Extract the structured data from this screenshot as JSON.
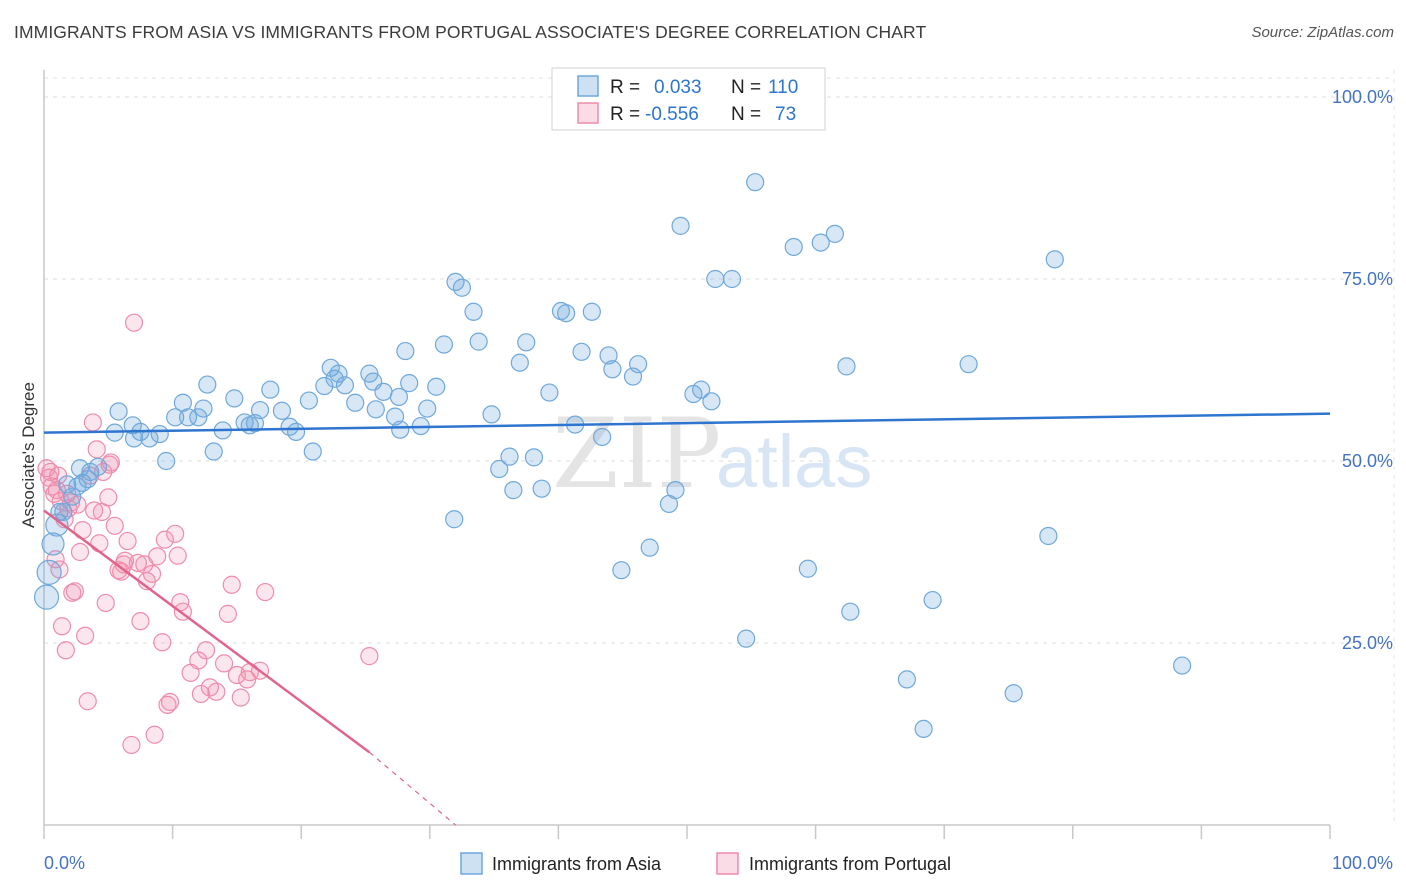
{
  "title": "IMMIGRANTS FROM ASIA VS IMMIGRANTS FROM PORTUGAL ASSOCIATE'S DEGREE CORRELATION CHART",
  "source": "Source: ZipAtlas.com",
  "watermark": {
    "zip": "ZIP",
    "atlas": "atlas"
  },
  "legend_top": {
    "rows": [
      {
        "r_label": "R =",
        "r_value": "0.033",
        "n_label": "N =",
        "n_value": "110"
      },
      {
        "r_label": "R =",
        "r_value": "-0.556",
        "n_label": "N =",
        "n_value": "73"
      }
    ]
  },
  "colors": {
    "asia": "#6fa8dc",
    "asia_fill": "rgba(111,168,220,0.28)",
    "asia_line": "#2e75cf",
    "portugal": "#f08cab",
    "portugal_fill": "rgba(240,140,171,0.22)",
    "portugal_line": "#e0648c",
    "value_text": "#2e75cf",
    "tick_text": "#4472c4"
  },
  "chart_data": {
    "type": "scatter",
    "title": "IMMIGRANTS FROM ASIA VS IMMIGRANTS FROM PORTUGAL ASSOCIATE'S DEGREE CORRELATION CHART",
    "xlabel": "",
    "ylabel": "Associate's Degree",
    "xlim": [
      0,
      100
    ],
    "ylim": [
      0,
      104
    ],
    "x_tick_labels": [
      "0.0%",
      "100.0%"
    ],
    "y_ticks": [
      25,
      50,
      75,
      100
    ],
    "y_tick_labels": [
      "25.0%",
      "50.0%",
      "75.0%",
      "100.0%"
    ],
    "grid": true,
    "legend_position": "top-center",
    "series": [
      {
        "name": "Immigrants from Asia",
        "R": 0.033,
        "N": 110,
        "trend": {
          "x": [
            0,
            100
          ],
          "y": [
            53.9,
            56.5
          ]
        },
        "points": [
          [
            0.2,
            31.3
          ],
          [
            0.4,
            34.7
          ],
          [
            0.7,
            38.6
          ],
          [
            1.0,
            41.2
          ],
          [
            1.5,
            43.0
          ],
          [
            1.8,
            46.8
          ],
          [
            2.2,
            45.1
          ],
          [
            2.6,
            46.5
          ],
          [
            3.0,
            47.0
          ],
          [
            3.6,
            48.5
          ],
          [
            4.2,
            49.2
          ],
          [
            5.5,
            53.9
          ],
          [
            7.0,
            53.1
          ],
          [
            7.5,
            54.0
          ],
          [
            8.2,
            53.1
          ],
          [
            9.0,
            53.7
          ],
          [
            10.2,
            56.0
          ],
          [
            10.8,
            58.0
          ],
          [
            11.2,
            56.0
          ],
          [
            12.4,
            57.2
          ],
          [
            12.7,
            60.5
          ],
          [
            13.9,
            54.2
          ],
          [
            14.8,
            58.6
          ],
          [
            16.0,
            54.9
          ],
          [
            16.8,
            57.0
          ],
          [
            17.6,
            59.8
          ],
          [
            18.5,
            56.9
          ],
          [
            19.6,
            54.0
          ],
          [
            20.6,
            58.3
          ],
          [
            21.8,
            60.3
          ],
          [
            22.3,
            62.8
          ],
          [
            22.9,
            62.0
          ],
          [
            23.4,
            60.4
          ],
          [
            24.2,
            58.0
          ],
          [
            25.3,
            62.0
          ],
          [
            25.6,
            60.9
          ],
          [
            26.4,
            59.5
          ],
          [
            27.3,
            56.1
          ],
          [
            27.6,
            58.8
          ],
          [
            28.4,
            60.7
          ],
          [
            28.1,
            65.1
          ],
          [
            29.3,
            54.8
          ],
          [
            29.8,
            57.2
          ],
          [
            30.5,
            60.2
          ],
          [
            31.1,
            66.0
          ],
          [
            32.0,
            74.6
          ],
          [
            32.5,
            73.8
          ],
          [
            33.8,
            66.4
          ],
          [
            34.8,
            56.4
          ],
          [
            35.4,
            48.9
          ],
          [
            36.2,
            50.6
          ],
          [
            36.5,
            46.0
          ],
          [
            37.5,
            66.3
          ],
          [
            38.1,
            50.5
          ],
          [
            38.7,
            46.2
          ],
          [
            39.3,
            59.4
          ],
          [
            40.2,
            70.6
          ],
          [
            40.6,
            70.3
          ],
          [
            41.3,
            55.0
          ],
          [
            41.8,
            65.0
          ],
          [
            42.6,
            70.5
          ],
          [
            43.4,
            53.3
          ],
          [
            43.9,
            64.5
          ],
          [
            44.2,
            62.6
          ],
          [
            45.8,
            61.6
          ],
          [
            46.2,
            63.3
          ],
          [
            47.1,
            38.1
          ],
          [
            48.6,
            44.1
          ],
          [
            49.1,
            46.0
          ],
          [
            49.5,
            82.3
          ],
          [
            50.5,
            59.2
          ],
          [
            51.1,
            59.8
          ],
          [
            51.9,
            58.2
          ],
          [
            52.2,
            75.0
          ],
          [
            53.5,
            75.0
          ],
          [
            54.6,
            25.6
          ],
          [
            55.3,
            88.3
          ],
          [
            58.3,
            79.4
          ],
          [
            59.4,
            35.2
          ],
          [
            60.4,
            80.0
          ],
          [
            61.5,
            81.2
          ],
          [
            62.4,
            63.0
          ],
          [
            62.7,
            29.3
          ],
          [
            67.1,
            20.0
          ],
          [
            68.4,
            13.2
          ],
          [
            69.1,
            30.9
          ],
          [
            71.9,
            63.3
          ],
          [
            75.4,
            18.1
          ],
          [
            78.1,
            39.7
          ],
          [
            78.6,
            77.7
          ],
          [
            88.5,
            21.9
          ],
          [
            1.2,
            43.0
          ],
          [
            2.8,
            49.0
          ],
          [
            3.4,
            47.5
          ],
          [
            9.5,
            50.0
          ],
          [
            13.2,
            51.3
          ],
          [
            5.8,
            56.8
          ],
          [
            6.9,
            54.9
          ],
          [
            12.0,
            56.0
          ],
          [
            15.6,
            55.3
          ],
          [
            20.9,
            51.3
          ],
          [
            25.8,
            57.1
          ],
          [
            31.9,
            42.0
          ],
          [
            16.4,
            55.2
          ],
          [
            19.1,
            54.7
          ],
          [
            22.6,
            61.3
          ],
          [
            27.7,
            54.3
          ],
          [
            33.4,
            70.5
          ],
          [
            37.0,
            63.5
          ],
          [
            44.9,
            35.0
          ]
        ]
      },
      {
        "name": "Immigrants from Portugal",
        "R": -0.556,
        "N": 73,
        "trend": {
          "x": [
            0,
            25.3
          ],
          "y": [
            43.2,
            10.0
          ]
        },
        "trend_dashed": {
          "x": [
            25.3,
            32.0
          ],
          "y": [
            10.0,
            0.0
          ]
        },
        "points": [
          [
            0.2,
            49.0
          ],
          [
            0.4,
            47.7
          ],
          [
            0.6,
            46.5
          ],
          [
            0.8,
            45.5
          ],
          [
            1.1,
            48.0
          ],
          [
            1.3,
            44.5
          ],
          [
            1.6,
            42.0
          ],
          [
            1.9,
            43.5
          ],
          [
            0.9,
            36.5
          ],
          [
            1.2,
            35.1
          ],
          [
            1.4,
            27.3
          ],
          [
            1.7,
            24.0
          ],
          [
            2.2,
            31.9
          ],
          [
            2.4,
            32.1
          ],
          [
            2.8,
            37.5
          ],
          [
            3.2,
            26.0
          ],
          [
            3.4,
            17.0
          ],
          [
            3.6,
            48.0
          ],
          [
            3.8,
            55.3
          ],
          [
            4.1,
            51.6
          ],
          [
            4.3,
            38.7
          ],
          [
            4.5,
            43.0
          ],
          [
            4.8,
            30.5
          ],
          [
            5.0,
            45.0
          ],
          [
            5.2,
            49.8
          ],
          [
            5.5,
            41.1
          ],
          [
            5.8,
            35.0
          ],
          [
            6.0,
            34.8
          ],
          [
            6.3,
            36.3
          ],
          [
            6.5,
            39.0
          ],
          [
            6.8,
            11.0
          ],
          [
            7.0,
            69.0
          ],
          [
            7.3,
            36.0
          ],
          [
            7.5,
            28.0
          ],
          [
            7.8,
            35.8
          ],
          [
            8.0,
            33.5
          ],
          [
            8.4,
            34.5
          ],
          [
            8.6,
            12.4
          ],
          [
            8.8,
            36.9
          ],
          [
            9.2,
            25.1
          ],
          [
            9.4,
            39.2
          ],
          [
            9.6,
            16.5
          ],
          [
            9.8,
            16.9
          ],
          [
            10.2,
            40.0
          ],
          [
            10.4,
            37.0
          ],
          [
            10.6,
            30.6
          ],
          [
            10.8,
            29.3
          ],
          [
            11.4,
            20.9
          ],
          [
            12.0,
            22.6
          ],
          [
            12.2,
            18.0
          ],
          [
            12.6,
            24.0
          ],
          [
            12.9,
            18.9
          ],
          [
            13.4,
            18.3
          ],
          [
            14.0,
            22.2
          ],
          [
            14.3,
            29.0
          ],
          [
            14.6,
            33.0
          ],
          [
            15.0,
            20.6
          ],
          [
            15.3,
            17.5
          ],
          [
            15.8,
            20.0
          ],
          [
            16.0,
            21.0
          ],
          [
            16.8,
            21.2
          ],
          [
            17.2,
            32.0
          ],
          [
            25.3,
            23.2
          ],
          [
            0.5,
            48.5
          ],
          [
            1.0,
            46.0
          ],
          [
            1.8,
            45.5
          ],
          [
            2.6,
            44.0
          ],
          [
            3.0,
            40.5
          ],
          [
            3.9,
            43.2
          ],
          [
            4.6,
            48.5
          ],
          [
            5.1,
            49.5
          ],
          [
            2.1,
            44.3
          ],
          [
            6.2,
            35.8
          ]
        ]
      }
    ]
  },
  "bottom_legend": [
    {
      "label": "Immigrants from Asia"
    },
    {
      "label": "Immigrants from Portugal"
    }
  ]
}
